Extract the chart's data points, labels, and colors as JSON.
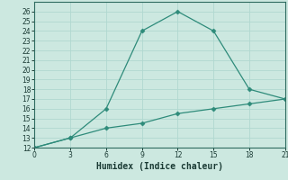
{
  "xlabel": "Humidex (Indice chaleur)",
  "line1_x": [
    0,
    3,
    6,
    9,
    12,
    15,
    18,
    21
  ],
  "line1_y": [
    12,
    13,
    16,
    24,
    26,
    24,
    18,
    17
  ],
  "line2_x": [
    0,
    3,
    6,
    9,
    12,
    15,
    18,
    21
  ],
  "line2_y": [
    12,
    13,
    14,
    14.5,
    15.5,
    16,
    16.5,
    17
  ],
  "line_color": "#2e8b7a",
  "bg_color": "#cce8e0",
  "plot_bg": "#cce8e0",
  "grid_color": "#b0d8d0",
  "spine_color": "#2e6b60",
  "tick_color": "#1a3a34",
  "xlim": [
    0,
    21
  ],
  "ylim": [
    12,
    27
  ],
  "xticks": [
    0,
    3,
    6,
    9,
    12,
    15,
    18,
    21
  ],
  "yticks": [
    12,
    13,
    14,
    15,
    16,
    17,
    18,
    19,
    20,
    21,
    22,
    23,
    24,
    25,
    26
  ],
  "marker": "D",
  "markersize": 2.5,
  "tick_fontsize": 5.5,
  "xlabel_fontsize": 7
}
